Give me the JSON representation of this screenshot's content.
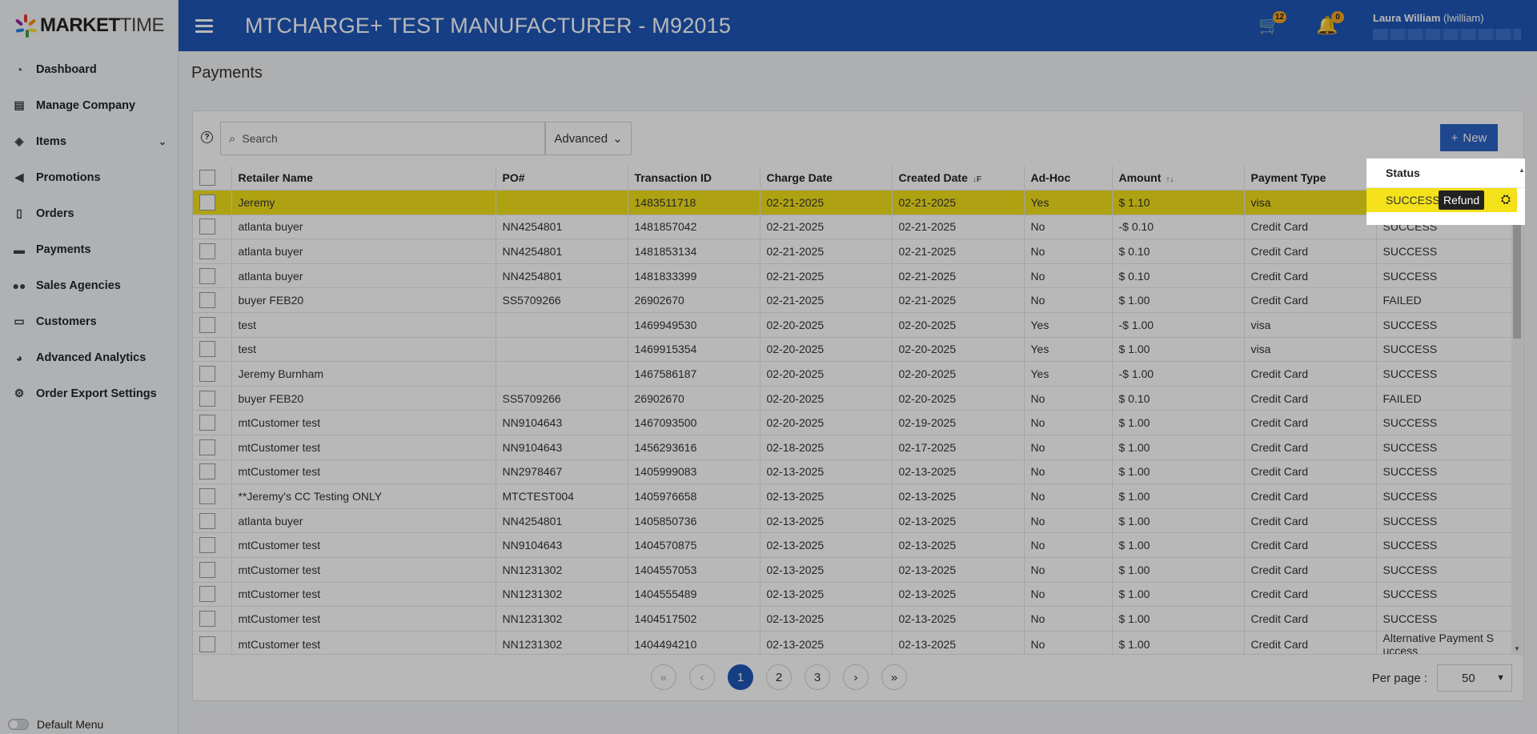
{
  "sidebar": {
    "logo_bold": "MARKET",
    "logo_light": "TIME",
    "items": [
      {
        "label": "Dashboard",
        "icon": "dashboard-icon"
      },
      {
        "label": "Manage Company",
        "icon": "company-icon"
      },
      {
        "label": "Items",
        "icon": "tag-icon"
      },
      {
        "label": "Promotions",
        "icon": "megaphone-icon"
      },
      {
        "label": "Orders",
        "icon": "document-icon"
      },
      {
        "label": "Payments",
        "icon": "money-icon"
      },
      {
        "label": "Sales Agencies",
        "icon": "users-icon"
      },
      {
        "label": "Customers",
        "icon": "id-card-icon"
      },
      {
        "label": "Advanced Analytics",
        "icon": "chart-icon"
      },
      {
        "label": "Order Export Settings",
        "icon": "gears-icon"
      }
    ],
    "default_menu_label": "Default Menu"
  },
  "header": {
    "title": "MTCHARGE+ TEST MANUFACTURER - M92015",
    "cart_count": "12",
    "notification_count": "0",
    "user_name": "Laura William",
    "user_handle": "(lwilliam)"
  },
  "page": {
    "title": "Payments",
    "search_placeholder": "Search",
    "advanced_label": "Advanced",
    "new_label": "New",
    "help_glyph": "?"
  },
  "table": {
    "columns": [
      "Retailer Name",
      "PO#",
      "Transaction ID",
      "Charge Date",
      "Created Date",
      "Ad-Hoc",
      "Amount",
      "Payment Type",
      "Status"
    ],
    "rows": [
      [
        "Jeremy",
        "",
        "1483511718",
        "02-21-2025",
        "02-21-2025",
        "Yes",
        "$ 1.10",
        "visa",
        "SUCCESS"
      ],
      [
        "atlanta buyer",
        "NN4254801",
        "1481857042",
        "02-21-2025",
        "02-21-2025",
        "No",
        "-$ 0.10",
        "Credit Card",
        "SUCCESS"
      ],
      [
        "atlanta buyer",
        "NN4254801",
        "1481853134",
        "02-21-2025",
        "02-21-2025",
        "No",
        "$ 0.10",
        "Credit Card",
        "SUCCESS"
      ],
      [
        "atlanta buyer",
        "NN4254801",
        "1481833399",
        "02-21-2025",
        "02-21-2025",
        "No",
        "$ 0.10",
        "Credit Card",
        "SUCCESS"
      ],
      [
        "buyer FEB20",
        "SS5709266",
        "26902670",
        "02-21-2025",
        "02-21-2025",
        "No",
        "$ 1.00",
        "Credit Card",
        "FAILED"
      ],
      [
        "test",
        "",
        "1469949530",
        "02-20-2025",
        "02-20-2025",
        "Yes",
        "-$ 1.00",
        "visa",
        "SUCCESS"
      ],
      [
        "test",
        "",
        "1469915354",
        "02-20-2025",
        "02-20-2025",
        "Yes",
        "$ 1.00",
        "visa",
        "SUCCESS"
      ],
      [
        "Jeremy Burnham",
        "",
        "1467586187",
        "02-20-2025",
        "02-20-2025",
        "Yes",
        "-$ 1.00",
        "Credit Card",
        "SUCCESS"
      ],
      [
        "buyer FEB20",
        "SS5709266",
        "26902670",
        "02-20-2025",
        "02-20-2025",
        "No",
        "$ 0.10",
        "Credit Card",
        "FAILED"
      ],
      [
        "mtCustomer test",
        "NN9104643",
        "1467093500",
        "02-20-2025",
        "02-19-2025",
        "No",
        "$ 1.00",
        "Credit Card",
        "SUCCESS"
      ],
      [
        "mtCustomer test",
        "NN9104643",
        "1456293616",
        "02-18-2025",
        "02-17-2025",
        "No",
        "$ 1.00",
        "Credit Card",
        "SUCCESS"
      ],
      [
        "mtCustomer test",
        "NN2978467",
        "1405999083",
        "02-13-2025",
        "02-13-2025",
        "No",
        "$ 1.00",
        "Credit Card",
        "SUCCESS"
      ],
      [
        "**Jeremy's CC Testing ONLY",
        "MTCTEST004",
        "1405976658",
        "02-13-2025",
        "02-13-2025",
        "No",
        "$ 1.00",
        "Credit Card",
        "SUCCESS"
      ],
      [
        "atlanta buyer",
        "NN4254801",
        "1405850736",
        "02-13-2025",
        "02-13-2025",
        "No",
        "$ 1.00",
        "Credit Card",
        "SUCCESS"
      ],
      [
        "mtCustomer test",
        "NN9104643",
        "1404570875",
        "02-13-2025",
        "02-13-2025",
        "No",
        "$ 1.00",
        "Credit Card",
        "SUCCESS"
      ],
      [
        "mtCustomer test",
        "NN1231302",
        "1404557053",
        "02-13-2025",
        "02-13-2025",
        "No",
        "$ 1.00",
        "Credit Card",
        "SUCCESS"
      ],
      [
        "mtCustomer test",
        "NN1231302",
        "1404555489",
        "02-13-2025",
        "02-13-2025",
        "No",
        "$ 1.00",
        "Credit Card",
        "SUCCESS"
      ],
      [
        "mtCustomer test",
        "NN1231302",
        "1404517502",
        "02-13-2025",
        "02-13-2025",
        "No",
        "$ 1.00",
        "Credit Card",
        "SUCCESS"
      ],
      [
        "mtCustomer test",
        "NN1231302",
        "1404494210",
        "02-13-2025",
        "02-13-2025",
        "No",
        "$ 1.00",
        "Credit Card",
        "Alternative Payment S uccess"
      ]
    ],
    "refund_tooltip": "Refund"
  },
  "pager": {
    "first": "«",
    "prev": "‹",
    "pages": [
      "1",
      "2",
      "3"
    ],
    "next": "›",
    "last": "»",
    "per_page_label": "Per page :",
    "per_page_value": "50"
  },
  "colors": {
    "header_blue": "#1f56b8",
    "highlight_yellow": "#f3e11a",
    "badge_orange": "#f5a623"
  }
}
